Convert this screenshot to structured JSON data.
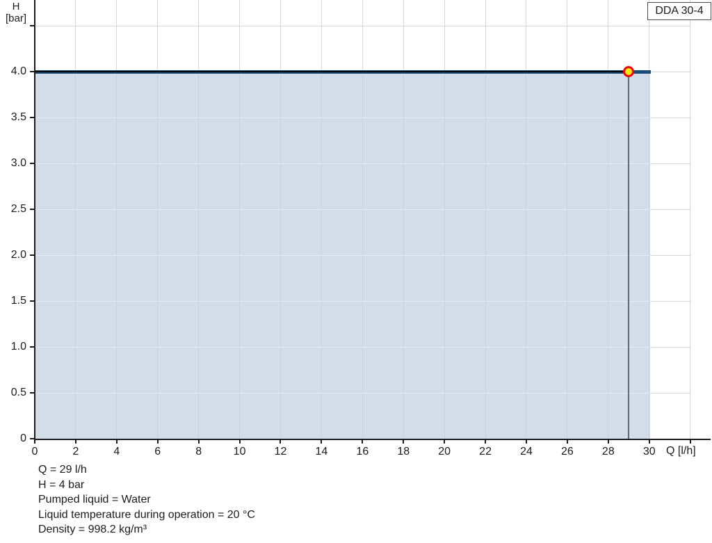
{
  "legend": {
    "label": "DDA 30-4"
  },
  "chart_data": {
    "type": "area",
    "series": [
      {
        "name": "DDA 30-4",
        "points": [
          {
            "q": 0,
            "h": 4.0
          },
          {
            "q": 30,
            "h": 4.0
          }
        ],
        "line_color": "#1b4b77",
        "fill_color": "#d3dde9"
      }
    ],
    "operating_point": {
      "q": 29,
      "h": 4.0
    },
    "x_axis": {
      "title": "Q [l/h]",
      "min": 0,
      "max": 32,
      "tick_step": 2,
      "labeled_ticks": [
        0,
        2,
        4,
        6,
        8,
        10,
        12,
        14,
        16,
        18,
        20,
        22,
        24,
        26,
        28,
        30
      ],
      "unlabeled_ticks": [
        32
      ]
    },
    "y_axis": {
      "title_line1": "H",
      "title_line2": "[bar]",
      "min": 0,
      "max": 4.8,
      "tick_step": 0.5,
      "labeled_ticks": [
        "0",
        "0.5",
        "1.0",
        "1.5",
        "2.0",
        "2.5",
        "3.0",
        "3.5",
        "4.0"
      ],
      "unlabeled_ticks": [
        4.5
      ]
    },
    "grid": true,
    "legend_position": "top-right"
  },
  "info": {
    "lines": [
      "Q = 29 l/h",
      "H = 4 bar",
      "Pumped liquid = Water",
      "Liquid temperature during operation = 20 °C",
      "Density = 998.2 kg/m³"
    ]
  },
  "colors": {
    "curve": "#1b4b77",
    "area_fill": "#d3dde9",
    "gridline": "#d6d6d6",
    "axis": "#1a1a1a",
    "crosshair_line": "#050505",
    "drop_line": "#5f6972",
    "marker_fill": "#ffe812",
    "marker_stroke": "#f00404",
    "legend_border": "#4c4c4c"
  }
}
